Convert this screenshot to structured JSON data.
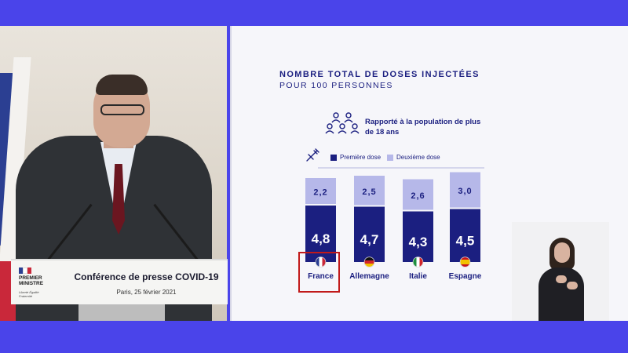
{
  "podium": {
    "logo_title": "PREMIER MINISTRE",
    "logo_motto": "Liberté Égalité Fraternité",
    "title": "Conférence de presse COVID-19",
    "subtitle": "Paris, 25 février 2021"
  },
  "chart_data": {
    "type": "bar",
    "stacked": true,
    "title": "NOMBRE TOTAL DE DOSES INJECTÉES",
    "subtitle": "POUR 100 PERSONNES",
    "annotation": "Rapporté à la population de plus de 18 ans",
    "categories": [
      "France",
      "Allemagne",
      "Italie",
      "Espagne"
    ],
    "category_flags": [
      "flag-france-icon",
      "flag-germany-icon",
      "flag-italy-icon",
      "flag-spain-icon"
    ],
    "highlighted_category": "France",
    "series": [
      {
        "name": "Première dose",
        "values": [
          4.8,
          4.7,
          4.3,
          4.5
        ],
        "labels": [
          "4,8",
          "4,7",
          "4,3",
          "4,5"
        ],
        "color": "#1b1f80"
      },
      {
        "name": "Deuxième dose",
        "values": [
          2.2,
          2.5,
          2.6,
          3.0
        ],
        "labels": [
          "2,2",
          "2,5",
          "2,6",
          "3,0"
        ],
        "color": "#b6b8e9"
      }
    ],
    "legend_position": "top",
    "grid": false
  },
  "colors": {
    "background_accent": "#4a44ea",
    "navy": "#1b1f80",
    "lavender": "#b6b8e9",
    "highlight": "#c11a1a"
  }
}
